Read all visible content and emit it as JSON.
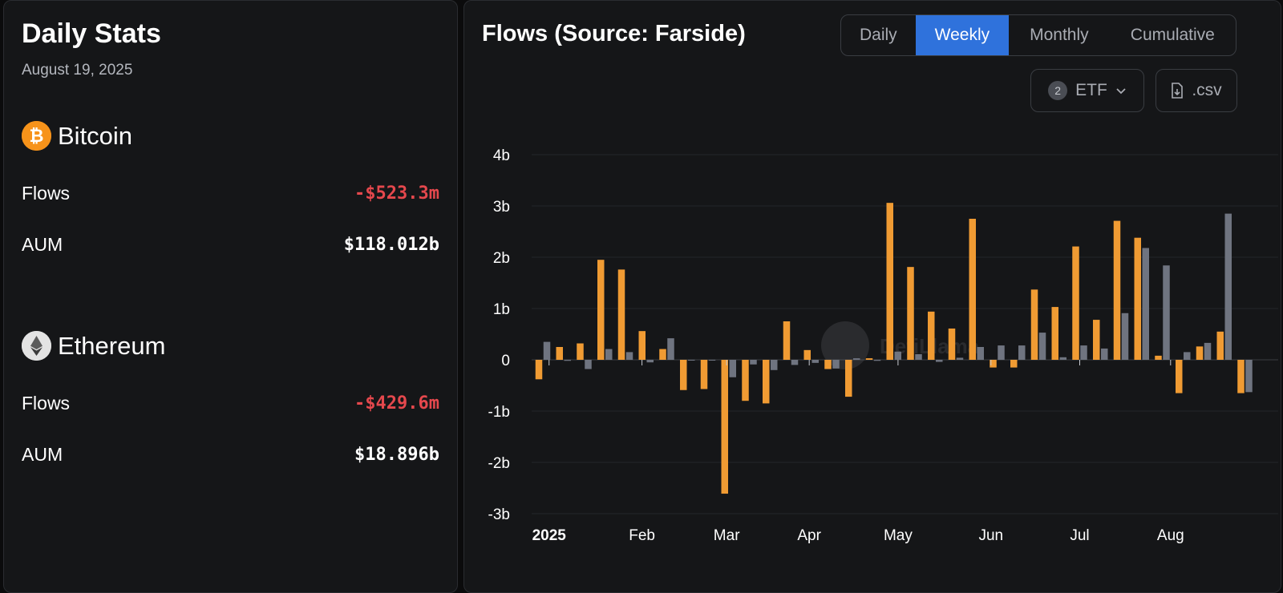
{
  "stats": {
    "title": "Daily Stats",
    "date": "August 19, 2025",
    "bitcoin": {
      "name": "Bitcoin",
      "flows_label": "Flows",
      "flows_value": "-$523.3m",
      "aum_label": "AUM",
      "aum_value": "$118.012b"
    },
    "ethereum": {
      "name": "Ethereum",
      "flows_label": "Flows",
      "flows_value": "-$429.6m",
      "aum_label": "AUM",
      "aum_value": "$18.896b"
    }
  },
  "flows": {
    "title": "Flows (Source: Farside)",
    "tabs": [
      {
        "label": "Daily",
        "active": false
      },
      {
        "label": "Weekly",
        "active": true
      },
      {
        "label": "Monthly",
        "active": false
      },
      {
        "label": "Cumulative",
        "active": false
      }
    ],
    "etf_filter": {
      "count": "2",
      "label": "ETF"
    },
    "csv_button": ".csv"
  },
  "colors": {
    "bitcoin": "#f09b33",
    "ethereum": "#6f7480",
    "negative": "#e5484d",
    "accent": "#2f72dc"
  },
  "chart_data": {
    "type": "bar",
    "title": "Flows (Source: Farside)",
    "unit": "USD billions",
    "ylim": [
      -3,
      4
    ],
    "yticks": [
      4,
      3,
      2,
      1,
      0,
      -1,
      -2,
      -3
    ],
    "ytick_labels": [
      "4b",
      "3b",
      "2b",
      "1b",
      "0",
      "-1b",
      "-2b",
      "-3b"
    ],
    "xtick_labels": [
      {
        "label": "2025",
        "week_index": 0.3,
        "bold": true
      },
      {
        "label": "Feb",
        "week_index": 4.8
      },
      {
        "label": "Mar",
        "week_index": 8.9
      },
      {
        "label": "Apr",
        "week_index": 12.9
      },
      {
        "label": "May",
        "week_index": 17.2
      },
      {
        "label": "Jun",
        "week_index": 21.7
      },
      {
        "label": "Jul",
        "week_index": 26.0
      },
      {
        "label": "Aug",
        "week_index": 30.4
      }
    ],
    "series": [
      {
        "name": "Bitcoin",
        "values": [
          -0.38,
          0.25,
          0.32,
          1.95,
          1.76,
          0.56,
          0.21,
          -0.59,
          -0.57,
          -2.61,
          -0.8,
          -0.85,
          0.75,
          0.19,
          -0.18,
          -0.72,
          0.03,
          3.06,
          1.81,
          0.94,
          0.61,
          2.75,
          -0.15,
          -0.15,
          1.37,
          1.03,
          2.21,
          0.78,
          2.71,
          2.38,
          0.08,
          -0.65,
          0.26,
          0.55,
          -0.65
        ]
      },
      {
        "name": "Ethereum",
        "values": [
          0.35,
          -0.02,
          -0.18,
          0.21,
          0.15,
          -0.05,
          0.42,
          -0.01,
          -0.01,
          -0.34,
          -0.09,
          -0.2,
          -0.1,
          -0.06,
          -0.17,
          0.03,
          -0.02,
          0.16,
          0.11,
          -0.04,
          0.04,
          0.25,
          0.28,
          0.28,
          0.53,
          0.05,
          0.28,
          0.22,
          0.91,
          2.18,
          1.84,
          0.15,
          0.33,
          2.85,
          -0.63
        ]
      }
    ]
  }
}
